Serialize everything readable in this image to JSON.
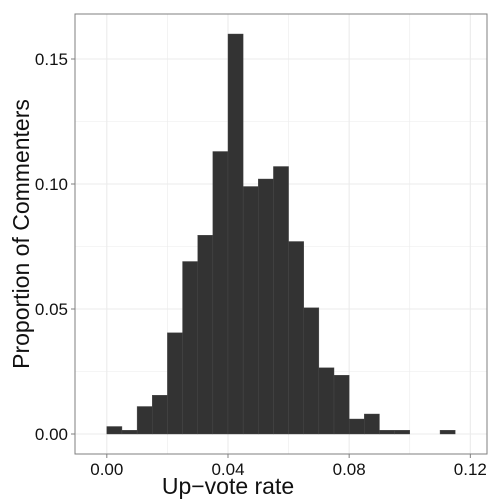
{
  "chart_data": {
    "type": "bar",
    "subtype": "histogram",
    "title": "",
    "xlabel": "Up−vote rate",
    "ylabel": "Proportion of Commenters",
    "xlim": [
      -0.0105,
      0.1255
    ],
    "ylim": [
      -0.008,
      0.168
    ],
    "xticks": [
      0.0,
      0.04,
      0.08,
      0.12
    ],
    "xtick_labels": [
      "0.00",
      "0.04",
      "0.08",
      "0.12"
    ],
    "yticks": [
      0.0,
      0.05,
      0.1,
      0.15
    ],
    "ytick_labels": [
      "0.00",
      "0.05",
      "0.10",
      "0.15"
    ],
    "bin_width": 0.005,
    "bins_start": [
      0.0,
      0.005,
      0.01,
      0.015,
      0.02,
      0.025,
      0.03,
      0.035,
      0.04,
      0.045,
      0.05,
      0.055,
      0.06,
      0.065,
      0.07,
      0.075,
      0.08,
      0.085,
      0.09,
      0.095,
      0.1,
      0.105,
      0.11
    ],
    "values": [
      0.003,
      0.0015,
      0.011,
      0.0155,
      0.0405,
      0.069,
      0.0795,
      0.113,
      0.16,
      0.099,
      0.102,
      0.107,
      0.077,
      0.0505,
      0.0265,
      0.0235,
      0.006,
      0.008,
      0.0015,
      0.0015,
      0.0,
      0.0,
      0.0015
    ],
    "grid": true,
    "legend": "none",
    "colors": {
      "bar": "#333333",
      "background": "#ffffff",
      "grid": "#ebebeb",
      "border": "#7f7f7f",
      "bar_edge": "#4a4a4a"
    }
  }
}
